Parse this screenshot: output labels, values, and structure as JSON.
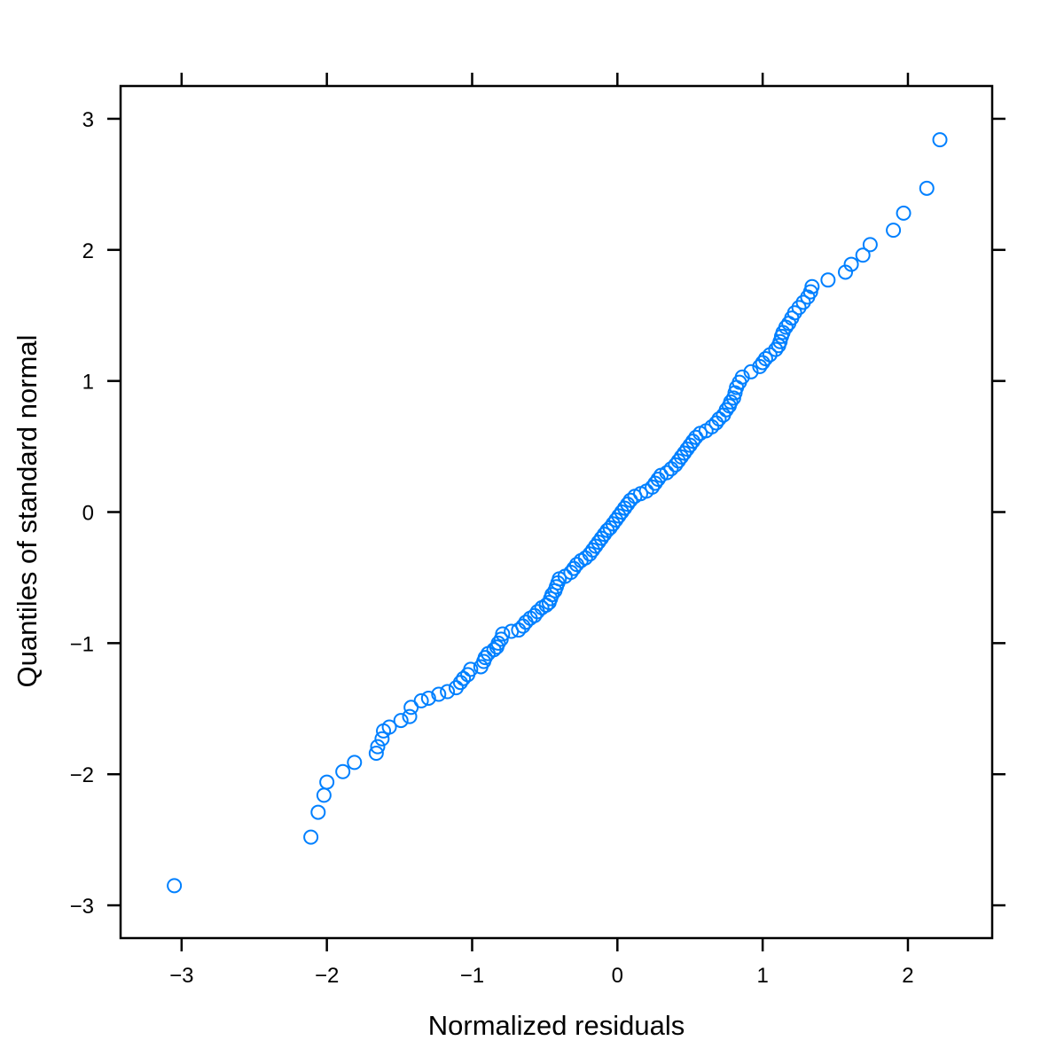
{
  "chart_data": {
    "type": "scatter",
    "title": "",
    "xlabel": "Normalized residuals",
    "ylabel": "Quantiles of standard normal",
    "xlim": [
      -3.42,
      2.58
    ],
    "ylim": [
      -3.25,
      3.25
    ],
    "xticks": [
      -3,
      -2,
      -1,
      0,
      1,
      2
    ],
    "yticks": [
      -3,
      -2,
      -1,
      0,
      1,
      2,
      3
    ],
    "xtick_labels": [
      "−3",
      "−2",
      "−1",
      "0",
      "1",
      "2"
    ],
    "ytick_labels": [
      "−3",
      "−2",
      "−1",
      "0",
      "1",
      "2",
      "3"
    ],
    "grid": false,
    "marker": "open-circle",
    "point_color": "#0080ff",
    "points": [
      [
        -3.05,
        -2.85
      ],
      [
        -2.11,
        -2.48
      ],
      [
        -2.06,
        -2.29
      ],
      [
        -2.02,
        -2.16
      ],
      [
        -2.0,
        -2.06
      ],
      [
        -1.89,
        -1.98
      ],
      [
        -1.81,
        -1.91
      ],
      [
        -1.66,
        -1.84
      ],
      [
        -1.65,
        -1.79
      ],
      [
        -1.62,
        -1.73
      ],
      [
        -1.61,
        -1.67
      ],
      [
        -1.57,
        -1.64
      ],
      [
        -1.49,
        -1.59
      ],
      [
        -1.43,
        -1.56
      ],
      [
        -1.42,
        -1.49
      ],
      [
        -1.35,
        -1.44
      ],
      [
        -1.3,
        -1.42
      ],
      [
        -1.23,
        -1.39
      ],
      [
        -1.17,
        -1.37
      ],
      [
        -1.11,
        -1.34
      ],
      [
        -1.08,
        -1.3
      ],
      [
        -1.06,
        -1.27
      ],
      [
        -1.03,
        -1.24
      ],
      [
        -1.01,
        -1.2
      ],
      [
        -0.94,
        -1.18
      ],
      [
        -0.92,
        -1.14
      ],
      [
        -0.91,
        -1.11
      ],
      [
        -0.89,
        -1.08
      ],
      [
        -0.85,
        -1.05
      ],
      [
        -0.83,
        -1.03
      ],
      [
        -0.82,
        -1.0
      ],
      [
        -0.8,
        -0.97
      ],
      [
        -0.79,
        -0.93
      ],
      [
        -0.73,
        -0.91
      ],
      [
        -0.68,
        -0.9
      ],
      [
        -0.65,
        -0.87
      ],
      [
        -0.63,
        -0.84
      ],
      [
        -0.6,
        -0.81
      ],
      [
        -0.57,
        -0.79
      ],
      [
        -0.55,
        -0.76
      ],
      [
        -0.52,
        -0.73
      ],
      [
        -0.49,
        -0.71
      ],
      [
        -0.47,
        -0.69
      ],
      [
        -0.46,
        -0.66
      ],
      [
        -0.45,
        -0.63
      ],
      [
        -0.43,
        -0.6
      ],
      [
        -0.42,
        -0.57
      ],
      [
        -0.41,
        -0.54
      ],
      [
        -0.4,
        -0.51
      ],
      [
        -0.36,
        -0.49
      ],
      [
        -0.32,
        -0.46
      ],
      [
        -0.3,
        -0.43
      ],
      [
        -0.28,
        -0.4
      ],
      [
        -0.25,
        -0.37
      ],
      [
        -0.22,
        -0.35
      ],
      [
        -0.19,
        -0.32
      ],
      [
        -0.17,
        -0.29
      ],
      [
        -0.15,
        -0.26
      ],
      [
        -0.13,
        -0.23
      ],
      [
        -0.11,
        -0.2
      ],
      [
        -0.09,
        -0.17
      ],
      [
        -0.07,
        -0.14
      ],
      [
        -0.05,
        -0.12
      ],
      [
        -0.03,
        -0.09
      ],
      [
        -0.01,
        -0.06
      ],
      [
        0.01,
        -0.03
      ],
      [
        0.03,
        0.0
      ],
      [
        0.05,
        0.03
      ],
      [
        0.07,
        0.06
      ],
      [
        0.09,
        0.09
      ],
      [
        0.12,
        0.12
      ],
      [
        0.16,
        0.14
      ],
      [
        0.2,
        0.16
      ],
      [
        0.24,
        0.19
      ],
      [
        0.26,
        0.22
      ],
      [
        0.28,
        0.25
      ],
      [
        0.3,
        0.28
      ],
      [
        0.34,
        0.3
      ],
      [
        0.37,
        0.33
      ],
      [
        0.4,
        0.36
      ],
      [
        0.42,
        0.39
      ],
      [
        0.44,
        0.42
      ],
      [
        0.46,
        0.45
      ],
      [
        0.48,
        0.48
      ],
      [
        0.5,
        0.51
      ],
      [
        0.52,
        0.54
      ],
      [
        0.54,
        0.57
      ],
      [
        0.57,
        0.6
      ],
      [
        0.61,
        0.62
      ],
      [
        0.65,
        0.65
      ],
      [
        0.68,
        0.68
      ],
      [
        0.7,
        0.71
      ],
      [
        0.73,
        0.74
      ],
      [
        0.75,
        0.78
      ],
      [
        0.77,
        0.81
      ],
      [
        0.78,
        0.84
      ],
      [
        0.8,
        0.87
      ],
      [
        0.81,
        0.91
      ],
      [
        0.82,
        0.95
      ],
      [
        0.84,
        0.99
      ],
      [
        0.86,
        1.03
      ],
      [
        0.92,
        1.07
      ],
      [
        0.98,
        1.11
      ],
      [
        1.0,
        1.14
      ],
      [
        1.02,
        1.17
      ],
      [
        1.05,
        1.2
      ],
      [
        1.09,
        1.24
      ],
      [
        1.11,
        1.27
      ],
      [
        1.12,
        1.3
      ],
      [
        1.13,
        1.34
      ],
      [
        1.14,
        1.37
      ],
      [
        1.16,
        1.41
      ],
      [
        1.18,
        1.44
      ],
      [
        1.2,
        1.48
      ],
      [
        1.22,
        1.52
      ],
      [
        1.25,
        1.56
      ],
      [
        1.28,
        1.6
      ],
      [
        1.31,
        1.64
      ],
      [
        1.33,
        1.68
      ],
      [
        1.34,
        1.72
      ],
      [
        1.45,
        1.77
      ],
      [
        1.57,
        1.83
      ],
      [
        1.61,
        1.89
      ],
      [
        1.69,
        1.96
      ],
      [
        1.74,
        2.04
      ],
      [
        1.9,
        2.15
      ],
      [
        1.97,
        2.28
      ],
      [
        2.13,
        2.47
      ],
      [
        2.22,
        2.84
      ]
    ]
  }
}
